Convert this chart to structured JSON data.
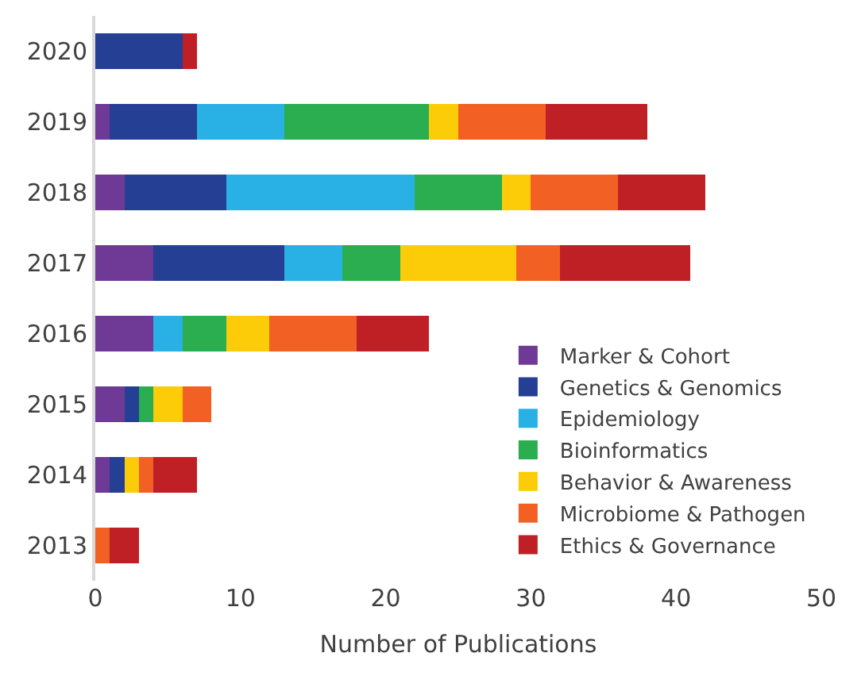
{
  "chart_data": {
    "type": "bar",
    "orientation": "horizontal",
    "stacked": true,
    "xlabel": "Number of Publications",
    "categories": [
      "2020",
      "2019",
      "2018",
      "2017",
      "2016",
      "2015",
      "2014",
      "2013"
    ],
    "xlim": [
      0,
      50
    ],
    "xticks": [
      0,
      10,
      20,
      30,
      40,
      50
    ],
    "legend": "bottom right",
    "series": [
      {
        "name": "Marker & Cohort",
        "color": "#6f3a96",
        "values": [
          0,
          1,
          2,
          4,
          4,
          2,
          1,
          0
        ]
      },
      {
        "name": "Genetics & Genomics",
        "color": "#243f94",
        "values": [
          6,
          6,
          7,
          9,
          0,
          1,
          1,
          0
        ]
      },
      {
        "name": "Epidemiology",
        "color": "#29b0e4",
        "values": [
          0,
          6,
          13,
          4,
          2,
          0,
          0,
          0
        ]
      },
      {
        "name": "Bioinformatics",
        "color": "#2aae4f",
        "values": [
          0,
          10,
          6,
          4,
          3,
          1,
          0,
          0
        ]
      },
      {
        "name": "Behavior & Awareness",
        "color": "#fdcc08",
        "values": [
          0,
          2,
          2,
          8,
          3,
          2,
          1,
          0
        ]
      },
      {
        "name": "Microbiome & Pathogen",
        "color": "#f26024",
        "values": [
          0,
          6,
          6,
          3,
          6,
          2,
          1,
          1
        ]
      },
      {
        "name": "Ethics & Governance",
        "color": "#bf2026",
        "values": [
          1,
          7,
          6,
          9,
          5,
          0,
          3,
          2
        ]
      }
    ]
  }
}
